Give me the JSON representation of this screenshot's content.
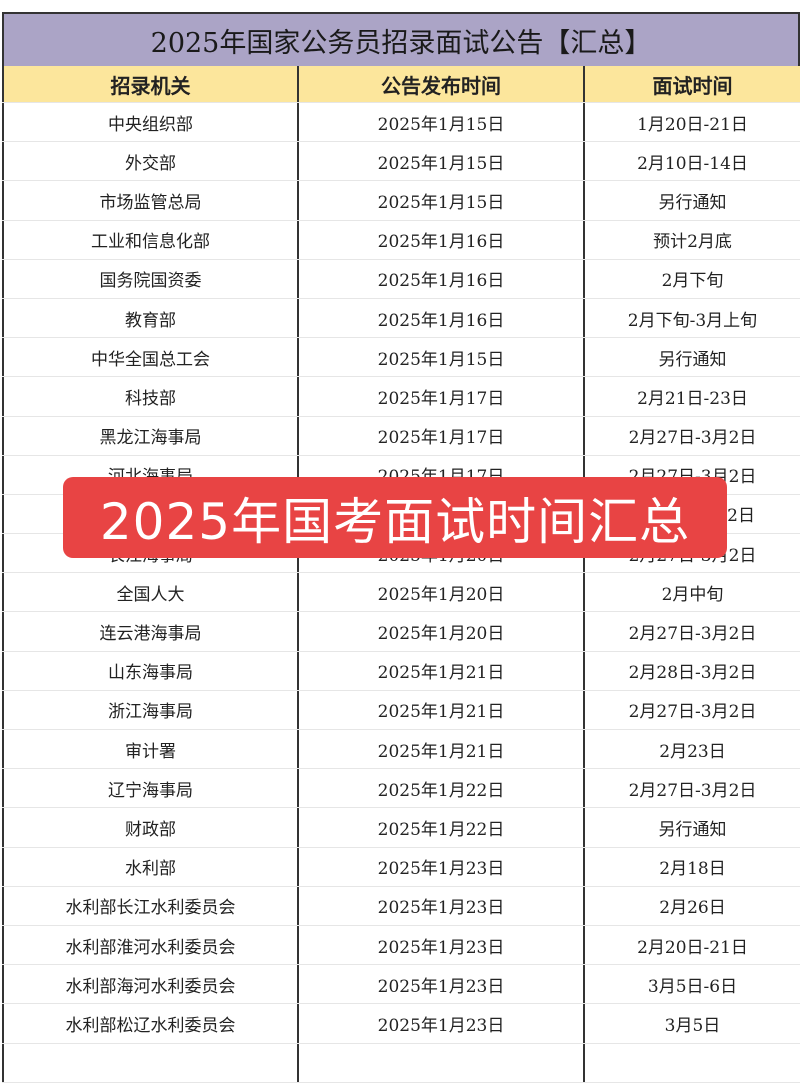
{
  "title": "2025年国家公务员招录面试公告【汇总】",
  "headers": [
    "招录机关",
    "公告发布时间",
    "面试时间"
  ],
  "rows": [
    [
      "中央组织部",
      "2025年1月15日",
      "1月20日-21日"
    ],
    [
      "外交部",
      "2025年1月15日",
      "2月10日-14日"
    ],
    [
      "市场监管总局",
      "2025年1月15日",
      "另行通知"
    ],
    [
      "工业和信息化部",
      "2025年1月16日",
      "预计2月底"
    ],
    [
      "国务院国资委",
      "2025年1月16日",
      "2月下旬"
    ],
    [
      "教育部",
      "2025年1月16日",
      "2月下旬-3月上旬"
    ],
    [
      "中华全国总工会",
      "2025年1月15日",
      "另行通知"
    ],
    [
      "科技部",
      "2025年1月17日",
      "2月21日-23日"
    ],
    [
      "黑龙江海事局",
      "2025年1月17日",
      "2月27日-3月2日"
    ],
    [
      "河北海事局",
      "2025年1月17日",
      "2月27日-3月2日"
    ],
    [
      "",
      "",
      "2日"
    ],
    [
      "长江海事局",
      "2025年1月20日",
      "2月27日-3月2日"
    ],
    [
      "全国人大",
      "2025年1月20日",
      "2月中旬"
    ],
    [
      "连云港海事局",
      "2025年1月20日",
      "2月27日-3月2日"
    ],
    [
      "山东海事局",
      "2025年1月21日",
      "2月28日-3月2日"
    ],
    [
      "浙江海事局",
      "2025年1月21日",
      "2月27日-3月2日"
    ],
    [
      "审计署",
      "2025年1月21日",
      "2月23日"
    ],
    [
      "辽宁海事局",
      "2025年1月22日",
      "2月27日-3月2日"
    ],
    [
      "财政部",
      "2025年1月22日",
      "另行通知"
    ],
    [
      "水利部",
      "2025年1月23日",
      "2月18日"
    ],
    [
      "水利部长江水利委员会",
      "2025年1月23日",
      "2月26日"
    ],
    [
      "水利部淮河水利委员会",
      "2025年1月23日",
      "2月20日-21日"
    ],
    [
      "水利部海河水利委员会",
      "2025年1月23日",
      "3月5日-6日"
    ],
    [
      "水利部松辽水利委员会",
      "2025年1月23日",
      "3月5日"
    ],
    [
      "",
      "",
      ""
    ]
  ],
  "banner": "2025年国考面试时间汇总",
  "colors": {
    "title_bg": "#aba4c6",
    "header_bg": "#fce69c",
    "banner_bg": "#e84444"
  }
}
